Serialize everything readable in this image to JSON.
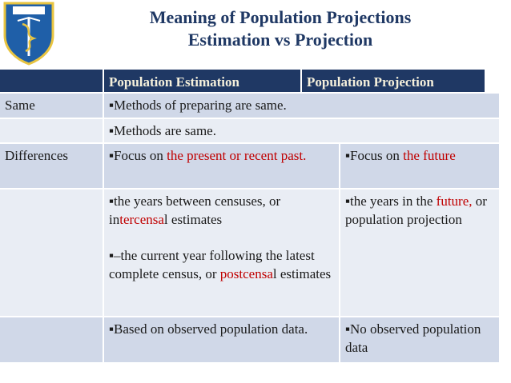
{
  "header": {
    "title_lines": [
      "Meaning of Population Projections",
      "Estimation vs Projection"
    ]
  },
  "table": {
    "columns": [
      "Population Estimation",
      "Population Projection"
    ],
    "rows": [
      {
        "label": "Same",
        "cells": [
          [
            [
              {
                "text": "▪Methods of preparing are same."
              }
            ]
          ]
        ]
      },
      {
        "cells": [
          [
            [
              {
                "text": "▪Methods are same."
              }
            ]
          ]
        ]
      },
      {
        "label": "Differences",
        "cells": [
          [
            [
              {
                "text": "▪Focus on "
              },
              {
                "text": "the present or recent past.",
                "color": "#c00000"
              }
            ]
          ],
          [
            [
              {
                "text": "▪Focus on "
              },
              {
                "text": "the future",
                "color": "#c00000"
              }
            ]
          ]
        ]
      },
      {
        "cells": [
          [
            [
              {
                "text": "▪the years between censuses, or in"
              },
              {
                "text": "tercensa",
                "color": "#c00000"
              },
              {
                "text": "l estimates"
              }
            ],
            [
              {
                "text": "▪–the current year following the latest complete census, or "
              },
              {
                "text": "postcensa",
                "color": "#c00000"
              },
              {
                "text": "l estimates"
              }
            ]
          ],
          [
            [
              {
                "text": "▪the years in the "
              },
              {
                "text": "future,",
                "color": "#c00000"
              },
              {
                "text": " or population projection"
              }
            ]
          ]
        ]
      },
      {
        "cells": [
          [
            [
              {
                "text": "▪Based on observed population data."
              }
            ]
          ],
          [
            [
              {
                "text": "▪No observed population data"
              }
            ]
          ]
        ]
      }
    ]
  }
}
